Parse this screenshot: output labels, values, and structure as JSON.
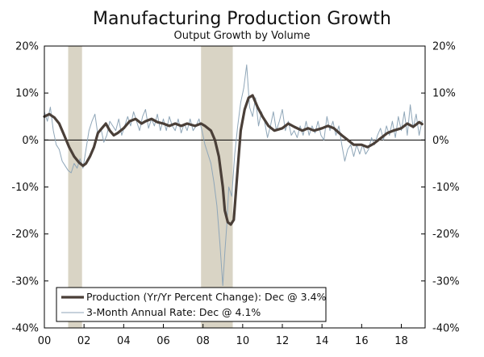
{
  "chart_data": {
    "type": "line",
    "title": "Manufacturing Production Growth",
    "subtitle": "Output Growth by Volume",
    "xlabel": "",
    "ylabel": "",
    "x_tick_labels": [
      "00",
      "02",
      "04",
      "06",
      "08",
      "10",
      "12",
      "14",
      "16",
      "18"
    ],
    "x_tick_values": [
      2000,
      2002,
      2004,
      2006,
      2008,
      2010,
      2012,
      2014,
      2016,
      2018
    ],
    "xlim": [
      2000,
      2019.2
    ],
    "y_tick_labels": [
      "20%",
      "10%",
      "0%",
      "-10%",
      "-20%",
      "-30%",
      "-40%"
    ],
    "y_tick_values": [
      20,
      10,
      0,
      -10,
      -20,
      -30,
      -40
    ],
    "ylim": [
      -40,
      20
    ],
    "recession_shading": [
      {
        "start": 2001.2,
        "end": 2001.9,
        "label": "recession"
      },
      {
        "start": 2007.9,
        "end": 2009.5,
        "label": "recession"
      }
    ],
    "colors": {
      "production": "#4a3f38",
      "annual_rate": "#8fa6b8",
      "recession": "#d9d4c5",
      "axis": "#000000"
    },
    "series": [
      {
        "name": "Production (Yr/Yr Percent Change): Dec @ 3.4%",
        "style": "thick",
        "points": [
          [
            2000.0,
            5.0
          ],
          [
            2000.25,
            5.5
          ],
          [
            2000.5,
            4.8
          ],
          [
            2000.75,
            3.5
          ],
          [
            2001.0,
            1.0
          ],
          [
            2001.25,
            -1.5
          ],
          [
            2001.5,
            -3.5
          ],
          [
            2001.75,
            -4.8
          ],
          [
            2001.95,
            -5.5
          ],
          [
            2002.1,
            -5.0
          ],
          [
            2002.3,
            -3.5
          ],
          [
            2002.5,
            -1.5
          ],
          [
            2002.7,
            1.5
          ],
          [
            2002.9,
            2.5
          ],
          [
            2003.1,
            3.5
          ],
          [
            2003.3,
            2.0
          ],
          [
            2003.5,
            1.0
          ],
          [
            2003.7,
            1.5
          ],
          [
            2004.0,
            2.5
          ],
          [
            2004.3,
            4.0
          ],
          [
            2004.6,
            4.5
          ],
          [
            2004.9,
            3.5
          ],
          [
            2005.1,
            4.0
          ],
          [
            2005.4,
            4.5
          ],
          [
            2005.7,
            3.8
          ],
          [
            2006.0,
            3.5
          ],
          [
            2006.3,
            3.0
          ],
          [
            2006.6,
            3.5
          ],
          [
            2006.9,
            3.0
          ],
          [
            2007.2,
            3.5
          ],
          [
            2007.6,
            3.0
          ],
          [
            2007.9,
            3.5
          ],
          [
            2008.1,
            3.0
          ],
          [
            2008.4,
            2.0
          ],
          [
            2008.6,
            0.0
          ],
          [
            2008.8,
            -3.5
          ],
          [
            2009.0,
            -10.0
          ],
          [
            2009.1,
            -15.0
          ],
          [
            2009.25,
            -17.5
          ],
          [
            2009.4,
            -18.0
          ],
          [
            2009.55,
            -17.0
          ],
          [
            2009.75,
            -6.0
          ],
          [
            2009.9,
            2.0
          ],
          [
            2010.1,
            6.5
          ],
          [
            2010.3,
            9.0
          ],
          [
            2010.5,
            9.5
          ],
          [
            2010.75,
            7.0
          ],
          [
            2011.0,
            5.0
          ],
          [
            2011.3,
            3.0
          ],
          [
            2011.6,
            2.0
          ],
          [
            2012.0,
            2.5
          ],
          [
            2012.3,
            3.5
          ],
          [
            2012.6,
            2.8
          ],
          [
            2013.0,
            2.0
          ],
          [
            2013.3,
            2.5
          ],
          [
            2013.6,
            2.0
          ],
          [
            2014.0,
            2.5
          ],
          [
            2014.3,
            3.0
          ],
          [
            2014.6,
            2.5
          ],
          [
            2015.0,
            1.0
          ],
          [
            2015.3,
            0.0
          ],
          [
            2015.6,
            -1.0
          ],
          [
            2016.0,
            -1.0
          ],
          [
            2016.3,
            -1.5
          ],
          [
            2016.6,
            -0.8
          ],
          [
            2017.0,
            0.5
          ],
          [
            2017.3,
            1.5
          ],
          [
            2017.6,
            2.0
          ],
          [
            2018.0,
            2.5
          ],
          [
            2018.3,
            3.5
          ],
          [
            2018.6,
            2.8
          ],
          [
            2018.9,
            3.8
          ],
          [
            2019.05,
            3.4
          ]
        ]
      },
      {
        "name": "3-Month Annual Rate: Dec @ 4.1%",
        "style": "thin",
        "points": [
          [
            2000.0,
            6.0
          ],
          [
            2000.15,
            4.0
          ],
          [
            2000.3,
            7.0
          ],
          [
            2000.45,
            2.0
          ],
          [
            2000.6,
            -1.0
          ],
          [
            2000.75,
            -2.0
          ],
          [
            2000.9,
            -4.5
          ],
          [
            2001.05,
            -5.5
          ],
          [
            2001.2,
            -6.5
          ],
          [
            2001.35,
            -7.0
          ],
          [
            2001.5,
            -5.0
          ],
          [
            2001.65,
            -6.0
          ],
          [
            2001.8,
            -4.0
          ],
          [
            2001.95,
            -6.0
          ],
          [
            2002.1,
            -2.0
          ],
          [
            2002.25,
            2.0
          ],
          [
            2002.4,
            4.0
          ],
          [
            2002.55,
            5.5
          ],
          [
            2002.7,
            1.0
          ],
          [
            2002.85,
            2.5
          ],
          [
            2003.0,
            -0.5
          ],
          [
            2003.15,
            1.0
          ],
          [
            2003.3,
            4.0
          ],
          [
            2003.45,
            3.0
          ],
          [
            2003.6,
            2.0
          ],
          [
            2003.75,
            4.5
          ],
          [
            2003.9,
            1.0
          ],
          [
            2004.05,
            3.0
          ],
          [
            2004.2,
            5.0
          ],
          [
            2004.35,
            3.0
          ],
          [
            2004.5,
            6.0
          ],
          [
            2004.65,
            4.0
          ],
          [
            2004.8,
            2.0
          ],
          [
            2004.95,
            5.0
          ],
          [
            2005.1,
            6.5
          ],
          [
            2005.25,
            2.5
          ],
          [
            2005.4,
            4.5
          ],
          [
            2005.55,
            3.0
          ],
          [
            2005.7,
            5.5
          ],
          [
            2005.85,
            2.0
          ],
          [
            2006.0,
            4.5
          ],
          [
            2006.15,
            2.0
          ],
          [
            2006.3,
            5.0
          ],
          [
            2006.45,
            3.0
          ],
          [
            2006.6,
            2.0
          ],
          [
            2006.75,
            4.5
          ],
          [
            2006.9,
            1.5
          ],
          [
            2007.05,
            3.5
          ],
          [
            2007.2,
            2.0
          ],
          [
            2007.35,
            4.5
          ],
          [
            2007.5,
            2.0
          ],
          [
            2007.65,
            3.0
          ],
          [
            2007.8,
            4.5
          ],
          [
            2007.95,
            2.0
          ],
          [
            2008.1,
            -1.0
          ],
          [
            2008.25,
            -3.0
          ],
          [
            2008.4,
            -5.0
          ],
          [
            2008.55,
            -9.0
          ],
          [
            2008.7,
            -14.0
          ],
          [
            2008.85,
            -22.0
          ],
          [
            2009.0,
            -31.0
          ],
          [
            2009.1,
            -24.0
          ],
          [
            2009.2,
            -18.0
          ],
          [
            2009.3,
            -10.0
          ],
          [
            2009.45,
            -12.0
          ],
          [
            2009.6,
            -3.0
          ],
          [
            2009.75,
            3.0
          ],
          [
            2009.9,
            8.0
          ],
          [
            2010.05,
            11.0
          ],
          [
            2010.2,
            16.0
          ],
          [
            2010.35,
            7.0
          ],
          [
            2010.5,
            5.0
          ],
          [
            2010.65,
            9.0
          ],
          [
            2010.8,
            3.0
          ],
          [
            2010.95,
            6.0
          ],
          [
            2011.1,
            4.0
          ],
          [
            2011.25,
            0.5
          ],
          [
            2011.4,
            3.0
          ],
          [
            2011.55,
            6.0
          ],
          [
            2011.7,
            2.0
          ],
          [
            2011.85,
            4.0
          ],
          [
            2012.0,
            6.5
          ],
          [
            2012.15,
            2.0
          ],
          [
            2012.3,
            4.0
          ],
          [
            2012.45,
            1.0
          ],
          [
            2012.6,
            2.0
          ],
          [
            2012.75,
            0.5
          ],
          [
            2012.9,
            3.0
          ],
          [
            2013.05,
            1.0
          ],
          [
            2013.2,
            4.0
          ],
          [
            2013.35,
            1.0
          ],
          [
            2013.5,
            3.0
          ],
          [
            2013.65,
            1.5
          ],
          [
            2013.8,
            4.0
          ],
          [
            2013.95,
            1.0
          ],
          [
            2014.1,
            0.0
          ],
          [
            2014.25,
            5.0
          ],
          [
            2014.4,
            2.0
          ],
          [
            2014.55,
            4.0
          ],
          [
            2014.7,
            1.0
          ],
          [
            2014.85,
            3.0
          ],
          [
            2015.0,
            -1.0
          ],
          [
            2015.15,
            -4.5
          ],
          [
            2015.3,
            -2.0
          ],
          [
            2015.45,
            -1.0
          ],
          [
            2015.6,
            -3.5
          ],
          [
            2015.75,
            -1.0
          ],
          [
            2015.9,
            -3.0
          ],
          [
            2016.05,
            -1.0
          ],
          [
            2016.2,
            -3.0
          ],
          [
            2016.35,
            -2.0
          ],
          [
            2016.5,
            0.5
          ],
          [
            2016.65,
            -1.0
          ],
          [
            2016.8,
            1.0
          ],
          [
            2016.95,
            2.5
          ],
          [
            2017.1,
            0.0
          ],
          [
            2017.25,
            3.0
          ],
          [
            2017.4,
            1.0
          ],
          [
            2017.55,
            4.0
          ],
          [
            2017.7,
            0.5
          ],
          [
            2017.85,
            5.0
          ],
          [
            2018.0,
            2.0
          ],
          [
            2018.15,
            6.0
          ],
          [
            2018.3,
            1.0
          ],
          [
            2018.45,
            7.5
          ],
          [
            2018.6,
            2.5
          ],
          [
            2018.75,
            5.5
          ],
          [
            2018.9,
            1.0
          ],
          [
            2019.05,
            4.1
          ]
        ]
      }
    ],
    "legend": [
      "Production (Yr/Yr Percent Change): Dec @ 3.4%",
      "3-Month Annual Rate: Dec @ 4.1%"
    ],
    "legend_position": "bottom-left"
  }
}
